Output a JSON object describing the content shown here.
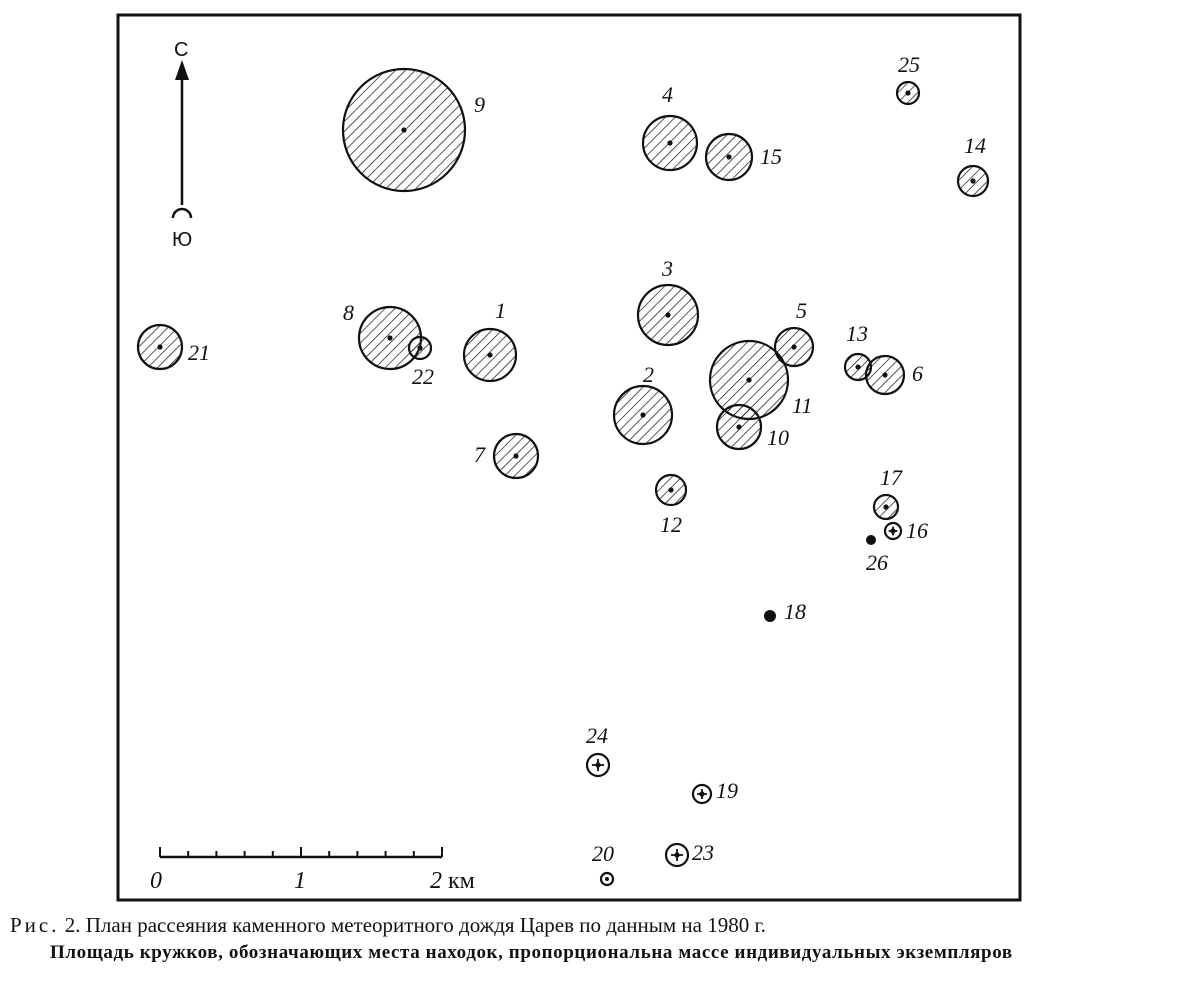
{
  "compass": {
    "north": "С",
    "south": "Ю"
  },
  "scale": {
    "ticks": [
      "0",
      "1",
      "2"
    ],
    "unit": "км"
  },
  "finds": [
    {
      "id": "1",
      "label": "1",
      "mass_rank": 26,
      "symbol": "hatched"
    },
    {
      "id": "2",
      "label": "2",
      "mass_rank": 29,
      "symbol": "hatched"
    },
    {
      "id": "3",
      "label": "3",
      "mass_rank": 30,
      "symbol": "hatched"
    },
    {
      "id": "4",
      "label": "4",
      "mass_rank": 27,
      "symbol": "hatched"
    },
    {
      "id": "5",
      "label": "5",
      "mass_rank": 19,
      "symbol": "hatched"
    },
    {
      "id": "6",
      "label": "6",
      "mass_rank": 19,
      "symbol": "hatched"
    },
    {
      "id": "7",
      "label": "7",
      "mass_rank": 22,
      "symbol": "hatched"
    },
    {
      "id": "8",
      "label": "8",
      "mass_rank": 31,
      "symbol": "hatched"
    },
    {
      "id": "9",
      "label": "9",
      "mass_rank": 61,
      "symbol": "hatched"
    },
    {
      "id": "10",
      "label": "10",
      "mass_rank": 22,
      "symbol": "hatched"
    },
    {
      "id": "11",
      "label": "11",
      "mass_rank": 39,
      "symbol": "hatched"
    },
    {
      "id": "12",
      "label": "12",
      "mass_rank": 15,
      "symbol": "hatched"
    },
    {
      "id": "13",
      "label": "13",
      "mass_rank": 13,
      "symbol": "hatched"
    },
    {
      "id": "14",
      "label": "14",
      "mass_rank": 15,
      "symbol": "hatched"
    },
    {
      "id": "15",
      "label": "15",
      "mass_rank": 23,
      "symbol": "hatched"
    },
    {
      "id": "16",
      "label": "16",
      "mass_rank": 8,
      "symbol": "crossed"
    },
    {
      "id": "17",
      "label": "17",
      "mass_rank": 12,
      "symbol": "hatched"
    },
    {
      "id": "18",
      "label": "18",
      "mass_rank": 6,
      "symbol": "dot"
    },
    {
      "id": "19",
      "label": "19",
      "mass_rank": 9,
      "symbol": "crossed"
    },
    {
      "id": "20",
      "label": "20",
      "mass_rank": 6,
      "symbol": "ring"
    },
    {
      "id": "21",
      "label": "21",
      "mass_rank": 22,
      "symbol": "hatched"
    },
    {
      "id": "22",
      "label": "22",
      "mass_rank": 11,
      "symbol": "hatched"
    },
    {
      "id": "23",
      "label": "23",
      "mass_rank": 11,
      "symbol": "crossed"
    },
    {
      "id": "24",
      "label": "24",
      "mass_rank": 11,
      "symbol": "crossed"
    },
    {
      "id": "25",
      "label": "25",
      "mass_rank": 11,
      "symbol": "hatched"
    },
    {
      "id": "26",
      "label": "26",
      "mass_rank": 5,
      "symbol": "dot"
    }
  ],
  "caption": {
    "fig_prefix": "Рис.",
    "fig_rest": " 2. План рассеяния каменного метеоритного дождя Царев по данным на 1980 г.",
    "note": "Площадь кружков, обозначающих места находок, пропорциональна массе индивидуальных экземпляров"
  }
}
